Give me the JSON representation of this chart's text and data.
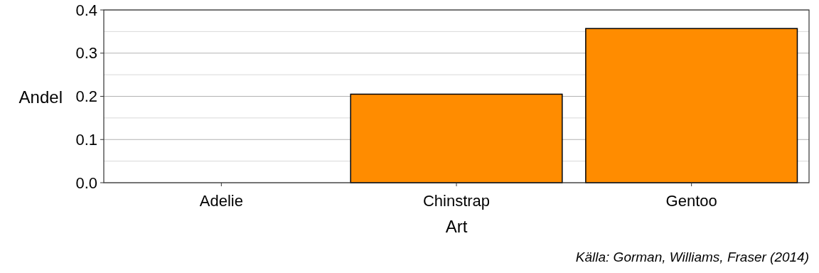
{
  "chart_data": {
    "type": "bar",
    "xlabel": "Art",
    "ylabel": "Andel",
    "categories": [
      "Adelie",
      "Chinstrap",
      "Gentoo"
    ],
    "values": [
      0,
      0.205,
      0.357
    ],
    "color": "#ff8c00",
    "ylim": [
      0,
      0.4
    ],
    "yticks": [
      {
        "value": 0,
        "label": "0.0"
      },
      {
        "value": 0.05,
        "label": null
      },
      0.1,
      {
        "value": 0.15,
        "label": null
      },
      0.2,
      {
        "value": 0.25,
        "label": null
      },
      0.3,
      {
        "value": 0.35,
        "label": null
      },
      0.4
    ],
    "grid": "y",
    "annotations": [
      "Källa: Gorman, Williams, Fraser (2014)"
    ]
  }
}
